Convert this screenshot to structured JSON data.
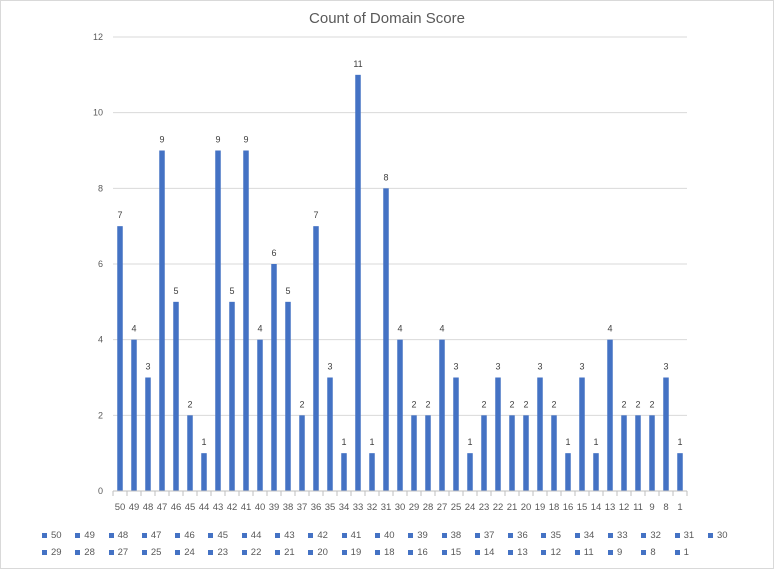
{
  "chart_data": {
    "type": "bar",
    "title": "Count of Domain Score",
    "xlabel": "",
    "ylabel": "",
    "ylim": [
      0,
      12
    ],
    "yticks": [
      0,
      2,
      4,
      6,
      8,
      10,
      12
    ],
    "grid": true,
    "legend_position": "bottom",
    "bar_color": "#4472c4",
    "categories": [
      "50",
      "49",
      "48",
      "47",
      "46",
      "45",
      "44",
      "43",
      "42",
      "41",
      "40",
      "39",
      "38",
      "37",
      "36",
      "35",
      "34",
      "33",
      "32",
      "31",
      "30",
      "29",
      "28",
      "27",
      "25",
      "24",
      "23",
      "22",
      "21",
      "20",
      "19",
      "18",
      "16",
      "15",
      "14",
      "13",
      "12",
      "11",
      "9",
      "8",
      "1"
    ],
    "values": [
      7,
      4,
      3,
      9,
      5,
      2,
      1,
      9,
      5,
      9,
      4,
      6,
      5,
      2,
      7,
      3,
      1,
      11,
      1,
      8,
      4,
      2,
      2,
      4,
      3,
      1,
      2,
      3,
      2,
      2,
      3,
      2,
      1,
      3,
      1,
      4,
      2,
      2,
      2,
      3,
      1
    ],
    "legend_rows": [
      [
        "50",
        "49",
        "48",
        "47",
        "46",
        "45",
        "44",
        "43",
        "42",
        "41",
        "40",
        "39",
        "38",
        "37",
        "36",
        "35",
        "34",
        "33",
        "32",
        "31",
        "30"
      ],
      [
        "29",
        "28",
        "27",
        "25",
        "24",
        "23",
        "22",
        "21",
        "20",
        "19",
        "18",
        "16",
        "15",
        "14",
        "13",
        "12",
        "11",
        "9",
        "8",
        "1"
      ]
    ]
  }
}
